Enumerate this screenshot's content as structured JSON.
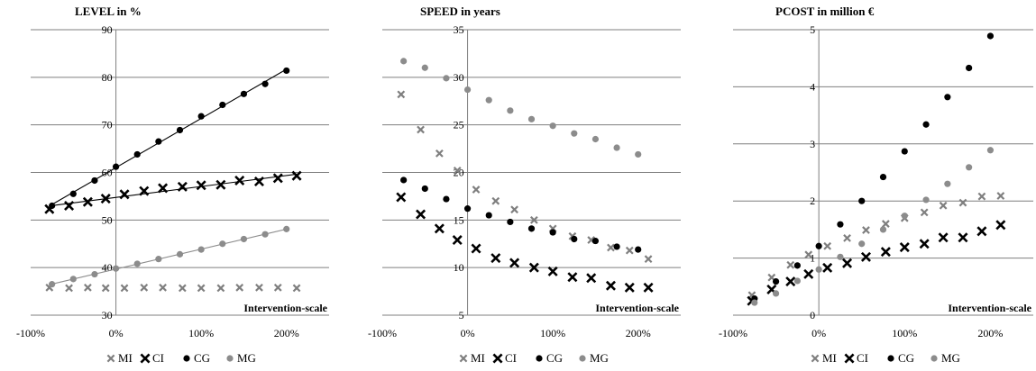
{
  "colors": {
    "MI": "#7f7f7f",
    "CI": "#000000",
    "CG": "#000000",
    "MG": "#8c8c8c",
    "grid": "#7f7f7f"
  },
  "chart_data": [
    {
      "type": "scatter",
      "title": "LEVEL in %",
      "xlabel": "Intervention-scale",
      "ylabel": "",
      "xlim": [
        -100,
        250
      ],
      "ylim": [
        30,
        90
      ],
      "yticks": [
        30,
        40,
        50,
        60,
        70,
        80,
        90
      ],
      "xticks": [
        -100,
        0,
        100,
        200
      ],
      "xtick_labels": [
        "-100%",
        "0%",
        "100%",
        "200%"
      ],
      "grid": "horizontal",
      "legend": "bottom",
      "series": [
        {
          "name": "MI",
          "marker": "x",
          "x": [
            -78,
            -55,
            -33,
            -12,
            10,
            33,
            55,
            78,
            100,
            123,
            145,
            168,
            190,
            212
          ],
          "y": [
            35.8,
            35.7,
            35.8,
            35.7,
            35.7,
            35.8,
            35.8,
            35.7,
            35.7,
            35.7,
            35.8,
            35.8,
            35.8,
            35.7
          ],
          "trend": false
        },
        {
          "name": "CI",
          "marker": "X",
          "x": [
            -78,
            -55,
            -33,
            -12,
            10,
            33,
            55,
            78,
            100,
            123,
            145,
            168,
            190,
            212
          ],
          "y": [
            52.3,
            53.0,
            53.8,
            54.5,
            55.4,
            56.1,
            56.7,
            57.0,
            57.3,
            57.4,
            58.3,
            58.1,
            58.8,
            59.3
          ],
          "trend": true
        },
        {
          "name": "CG",
          "marker": "dot",
          "x": [
            -75,
            -50,
            -25,
            0,
            25,
            50,
            75,
            100,
            125,
            150,
            175,
            200
          ],
          "y": [
            53.0,
            55.5,
            58.3,
            61.2,
            63.8,
            66.5,
            68.9,
            71.8,
            74.2,
            76.5,
            78.6,
            81.4
          ],
          "trend": true
        },
        {
          "name": "MG",
          "marker": "dot",
          "x": [
            -75,
            -50,
            -25,
            0,
            25,
            50,
            75,
            100,
            125,
            150,
            175,
            200
          ],
          "y": [
            36.5,
            37.6,
            38.6,
            39.8,
            40.8,
            41.8,
            42.8,
            43.8,
            45.0,
            46.0,
            47.0,
            48.1
          ],
          "trend": true
        }
      ]
    },
    {
      "type": "scatter",
      "title": "SPEED in years",
      "xlabel": "Intervention-scale",
      "ylabel": "",
      "xlim": [
        -100,
        250
      ],
      "ylim": [
        5,
        35
      ],
      "yticks": [
        5,
        10,
        15,
        20,
        25,
        30,
        35
      ],
      "xticks": [
        -100,
        0,
        100,
        200
      ],
      "xtick_labels": [
        "-100%",
        "0%",
        "100%",
        "200%"
      ],
      "grid": "horizontal",
      "legend": "bottom",
      "series": [
        {
          "name": "MI",
          "marker": "x",
          "x": [
            -78,
            -55,
            -33,
            -12,
            10,
            33,
            55,
            78,
            100,
            123,
            145,
            168,
            190,
            212
          ],
          "y": [
            28.2,
            24.5,
            22.0,
            20.2,
            18.2,
            17.0,
            16.1,
            15.0,
            14.1,
            13.3,
            12.9,
            12.1,
            11.8,
            10.9
          ],
          "trend": false
        },
        {
          "name": "CI",
          "marker": "X",
          "x": [
            -78,
            -55,
            -33,
            -12,
            10,
            33,
            55,
            78,
            100,
            123,
            145,
            168,
            190,
            212
          ],
          "y": [
            17.4,
            15.6,
            14.1,
            12.9,
            12.0,
            11.0,
            10.5,
            10.0,
            9.6,
            9.0,
            8.9,
            8.1,
            7.9,
            7.9
          ],
          "trend": false
        },
        {
          "name": "CG",
          "marker": "dot",
          "x": [
            -75,
            -50,
            -25,
            0,
            25,
            50,
            75,
            100,
            125,
            150,
            175,
            200
          ],
          "y": [
            19.2,
            18.3,
            17.2,
            16.2,
            15.5,
            14.8,
            14.1,
            13.7,
            13.0,
            12.8,
            12.2,
            11.9
          ],
          "trend": false
        },
        {
          "name": "MG",
          "marker": "dot",
          "x": [
            -75,
            -50,
            -25,
            0,
            25,
            50,
            75,
            100,
            125,
            150,
            175,
            200
          ],
          "y": [
            31.7,
            31.0,
            29.9,
            28.7,
            27.6,
            26.5,
            25.6,
            24.9,
            24.1,
            23.5,
            22.6,
            21.9
          ],
          "trend": false
        }
      ]
    },
    {
      "type": "scatter",
      "title": "PCOST in million €",
      "xlabel": "Intervention-scale",
      "ylabel": "",
      "xlim": [
        -100,
        250
      ],
      "ylim": [
        0,
        5
      ],
      "yticks": [
        0,
        1,
        2,
        3,
        4,
        5
      ],
      "xticks": [
        -100,
        0,
        100,
        200
      ],
      "xtick_labels": [
        "-100%",
        "0%",
        "100%",
        "200%"
      ],
      "grid": "horizontal",
      "legend": "bottom",
      "series": [
        {
          "name": "MI",
          "marker": "x",
          "x": [
            -78,
            -55,
            -33,
            -12,
            10,
            33,
            55,
            78,
            100,
            123,
            145,
            168,
            190,
            212
          ],
          "y": [
            0.35,
            0.66,
            0.88,
            1.06,
            1.21,
            1.35,
            1.49,
            1.6,
            1.7,
            1.8,
            1.92,
            1.97,
            2.08,
            2.09
          ],
          "trend": false
        },
        {
          "name": "CI",
          "marker": "X",
          "x": [
            -78,
            -55,
            -33,
            -12,
            10,
            33,
            55,
            78,
            100,
            123,
            145,
            168,
            190,
            212
          ],
          "y": [
            0.25,
            0.45,
            0.59,
            0.72,
            0.83,
            0.91,
            1.02,
            1.11,
            1.19,
            1.25,
            1.36,
            1.36,
            1.47,
            1.58
          ],
          "trend": false
        },
        {
          "name": "CG",
          "marker": "dot",
          "x": [
            -75,
            -50,
            -25,
            0,
            25,
            50,
            75,
            100,
            125,
            150,
            175,
            200
          ],
          "y": [
            0.29,
            0.59,
            0.87,
            1.21,
            1.59,
            2.0,
            2.42,
            2.87,
            3.34,
            3.82,
            4.33,
            4.89
          ],
          "trend": false
        },
        {
          "name": "MG",
          "marker": "dot",
          "x": [
            -75,
            -50,
            -25,
            0,
            25,
            50,
            75,
            100,
            125,
            150,
            175,
            200
          ],
          "y": [
            0.22,
            0.38,
            0.6,
            0.8,
            1.02,
            1.25,
            1.5,
            1.74,
            2.02,
            2.3,
            2.59,
            2.89
          ],
          "trend": false
        }
      ]
    }
  ]
}
